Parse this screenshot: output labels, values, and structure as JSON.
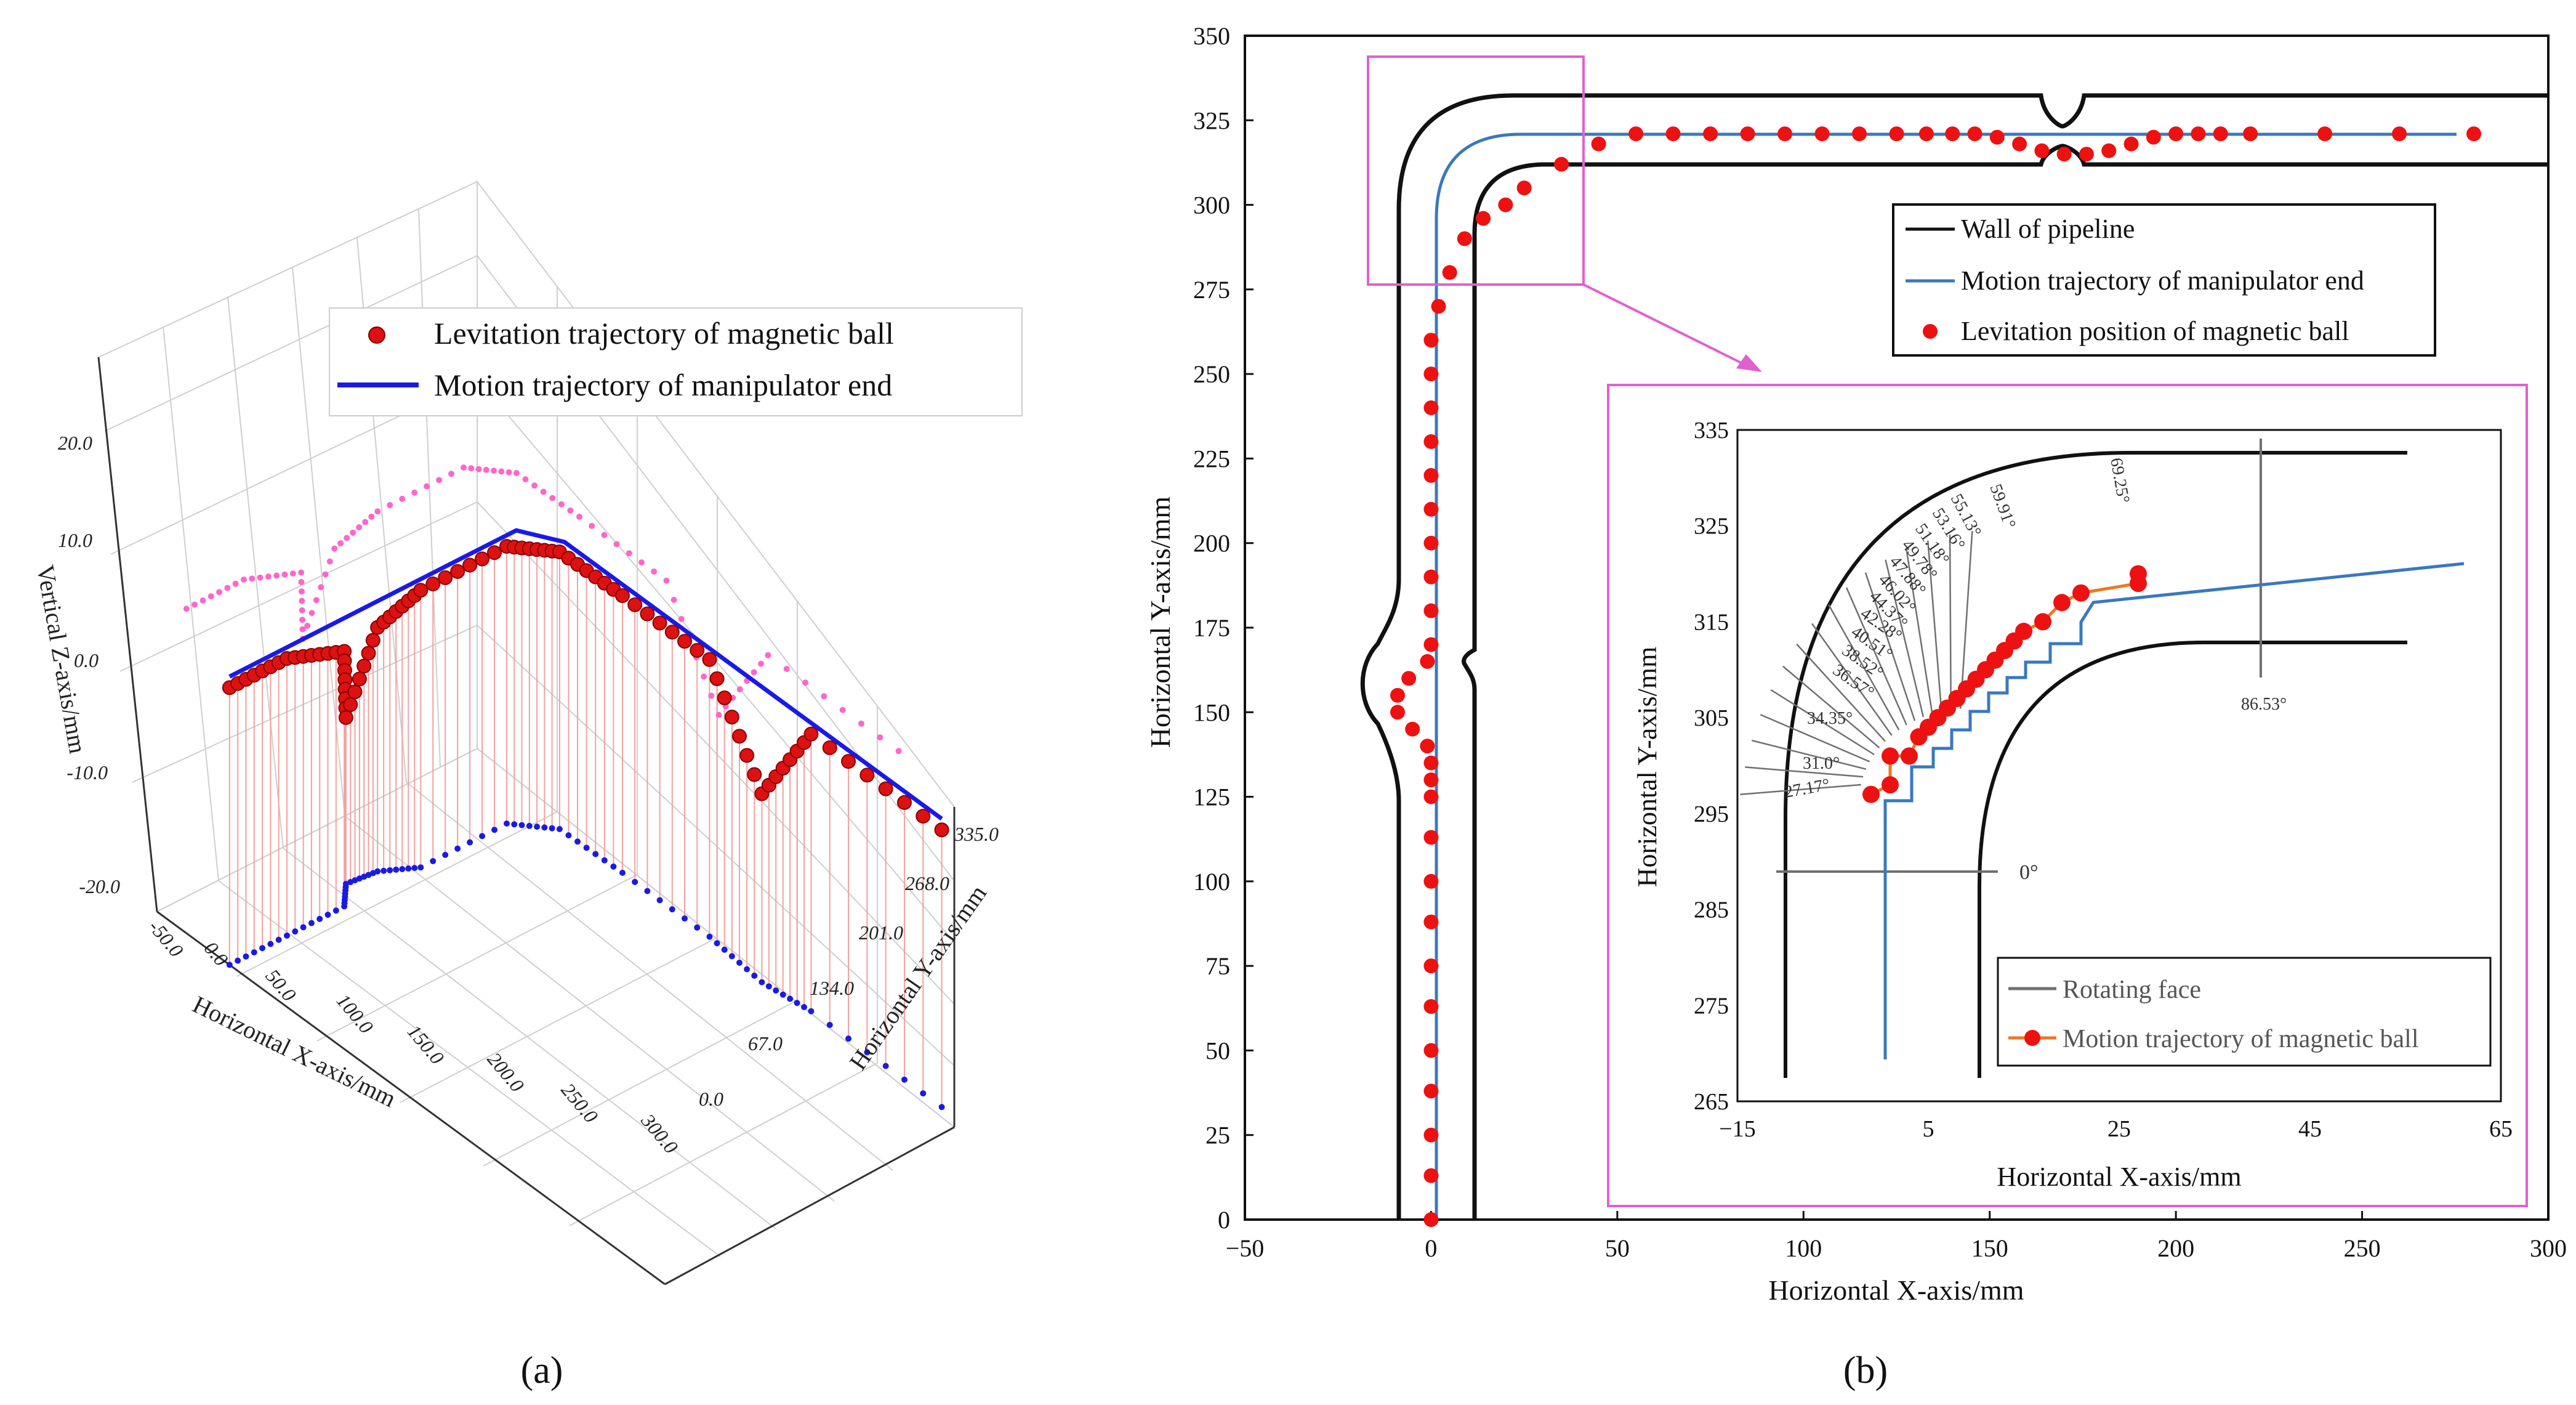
{
  "figure": {
    "panel_a_label": "(a)",
    "panel_b_label": "(b)"
  },
  "chart_data": [
    {
      "type": "scatter3d",
      "panel": "a",
      "legend": [
        "Levitation trajectory of magnetic ball",
        "Motion trajectory of manipulator end"
      ],
      "xlabel": "Horizontal X-axis/mm",
      "ylabel": "Horizontal Y-axis/mm",
      "zlabel": "Vertical Z-axis/mm",
      "x_ticks": [
        "-50.0",
        "0.0",
        "50.0",
        "100.0",
        "150.0",
        "200.0",
        "250.0",
        "300.0"
      ],
      "y_ticks": [
        "0.0",
        "67.0",
        "134.0",
        "201.0",
        "268.0",
        "335.0"
      ],
      "z_ticks": [
        "-20.0",
        "-10.0",
        "0.0",
        "10.0",
        "20.0"
      ],
      "xlim": [
        -50,
        300
      ],
      "ylim": [
        0,
        335
      ],
      "zlim": [
        -25,
        25
      ],
      "colors": {
        "ball": "#dd1111",
        "manipulator": "#1a1ae6",
        "projection": "#ff66cc",
        "drop_lines": "#f5a0a0"
      },
      "manipulator_path": [
        [
          0,
          0,
          0
        ],
        [
          0,
          300,
          0
        ],
        [
          20,
          320,
          0
        ],
        [
          280,
          320,
          0
        ]
      ],
      "ball_path": [
        [
          0,
          0,
          0
        ],
        [
          0,
          60,
          0
        ],
        [
          0,
          120,
          -2
        ],
        [
          -12,
          140,
          -10
        ],
        [
          -10,
          170,
          -3
        ],
        [
          0,
          200,
          0
        ],
        [
          0,
          290,
          0
        ],
        [
          18,
          318,
          0
        ],
        [
          60,
          320,
          0
        ],
        [
          120,
          320,
          0
        ],
        [
          160,
          314,
          -8
        ],
        [
          190,
          320,
          0
        ],
        [
          280,
          320,
          0
        ]
      ]
    },
    {
      "type": "line",
      "panel": "b",
      "xlabel": "Horizontal X-axis/mm",
      "ylabel": "Horizontal Y-axis/mm",
      "xlim": [
        -50,
        300
      ],
      "ylim": [
        0,
        350
      ],
      "x_ticks": [
        "−50",
        "0",
        "50",
        "100",
        "150",
        "200",
        "250",
        "300"
      ],
      "y_ticks": [
        "0",
        "25",
        "50",
        "75",
        "100",
        "125",
        "150",
        "175",
        "200",
        "225",
        "250",
        "275",
        "300",
        "325",
        "350"
      ],
      "legend": [
        "Wall of pipeline",
        "Motion trajectory of manipulator end",
        "Levitation position of magnetic ball"
      ],
      "colors": {
        "wall": "#000000",
        "trajectory": "#3a78c0",
        "ball": "#ee1111",
        "zoom_box": "#e060d0"
      },
      "series": [
        {
          "name": "Wall of pipeline",
          "outer": [
            [
              -10,
              0
            ],
            [
              -10,
              290
            ],
            [
              10,
              332
            ],
            [
              300,
              332
            ]
          ],
          "inner": [
            [
              10,
              0
            ],
            [
              10,
              290
            ],
            [
              30,
              312
            ],
            [
              300,
              312
            ]
          ]
        },
        {
          "name": "Motion trajectory of manipulator end",
          "x": [
            0,
            0,
            12,
            20,
            40,
            280
          ],
          "y": [
            0,
            298,
            310,
            318,
            321,
            321
          ]
        },
        {
          "name": "Levitation position of magnetic ball",
          "x": [
            0,
            0,
            0,
            0,
            0,
            0,
            0,
            0,
            0,
            0,
            0,
            0,
            0,
            -1,
            -5,
            -9,
            -9,
            -6,
            -1,
            0,
            0,
            0,
            0,
            0,
            0,
            0,
            0,
            0,
            0,
            2,
            5,
            9,
            14,
            20,
            25,
            35,
            45,
            55,
            65,
            75,
            85,
            95,
            105,
            115,
            125,
            133,
            140,
            146,
            152,
            158,
            164,
            170,
            176,
            182,
            188,
            194,
            200,
            206,
            212,
            220,
            240,
            260,
            280
          ],
          "y": [
            0,
            13,
            25,
            38,
            50,
            63,
            75,
            88,
            100,
            113,
            125,
            130,
            135,
            140,
            145,
            150,
            155,
            160,
            165,
            170,
            180,
            190,
            200,
            210,
            220,
            230,
            240,
            250,
            260,
            270,
            280,
            290,
            296,
            300,
            305,
            312,
            318,
            321,
            321,
            321,
            321,
            321,
            321,
            321,
            321,
            321,
            321,
            321,
            320,
            318,
            316,
            315,
            315,
            316,
            318,
            320,
            321,
            321,
            321,
            321,
            321,
            321,
            321
          ]
        }
      ]
    },
    {
      "type": "line",
      "panel": "b-inset",
      "xlabel": "Horizontal X-axis/mm",
      "ylabel": "Horizontal Y-axis/mm",
      "xlim": [
        -15,
        65
      ],
      "ylim": [
        265,
        335
      ],
      "x_ticks": [
        "−15",
        "5",
        "25",
        "45",
        "65"
      ],
      "y_ticks": [
        "265",
        "275",
        "285",
        "295",
        "305",
        "315",
        "325",
        "335"
      ],
      "legend": [
        "Rotating face",
        "Motion trajectory of magnetic ball"
      ],
      "angle_labels": [
        "27.17°",
        "31.0°",
        "34.35°",
        "36.57°",
        "38.52°",
        "40.51°",
        "42.28°",
        "44.37°",
        "46.02°",
        "47.88°",
        "49.78°",
        "51.18°",
        "53.16°",
        "55.13°",
        "59.91°",
        "69.25°",
        "86.53°",
        "0°"
      ],
      "colors": {
        "wall": "#000000",
        "rotating_face": "#707070",
        "trajectory": "#ee7722",
        "ball": "#ee1111",
        "manipulator": "#3a78c0"
      },
      "series": [
        {
          "name": "Motion trajectory of magnetic ball",
          "x": [
            -1,
            1,
            1,
            3,
            4,
            5,
            6,
            7,
            8,
            9,
            10,
            11,
            12,
            13,
            14,
            15,
            17,
            19,
            21,
            27,
            27
          ],
          "y": [
            297,
            298,
            301,
            301,
            303,
            304,
            305,
            306,
            307,
            308,
            309,
            310,
            311,
            312,
            313,
            314,
            315,
            317,
            318,
            319,
            320
          ]
        },
        {
          "name": "Manipulator end",
          "x": [
            1,
            1,
            3,
            5,
            7,
            9,
            11,
            13,
            15,
            17,
            19,
            21,
            23,
            28,
            63
          ],
          "y": [
            268,
            298,
            302,
            305,
            307,
            309,
            311,
            312,
            313,
            314,
            315,
            316,
            317,
            321,
            321
          ]
        }
      ]
    }
  ]
}
